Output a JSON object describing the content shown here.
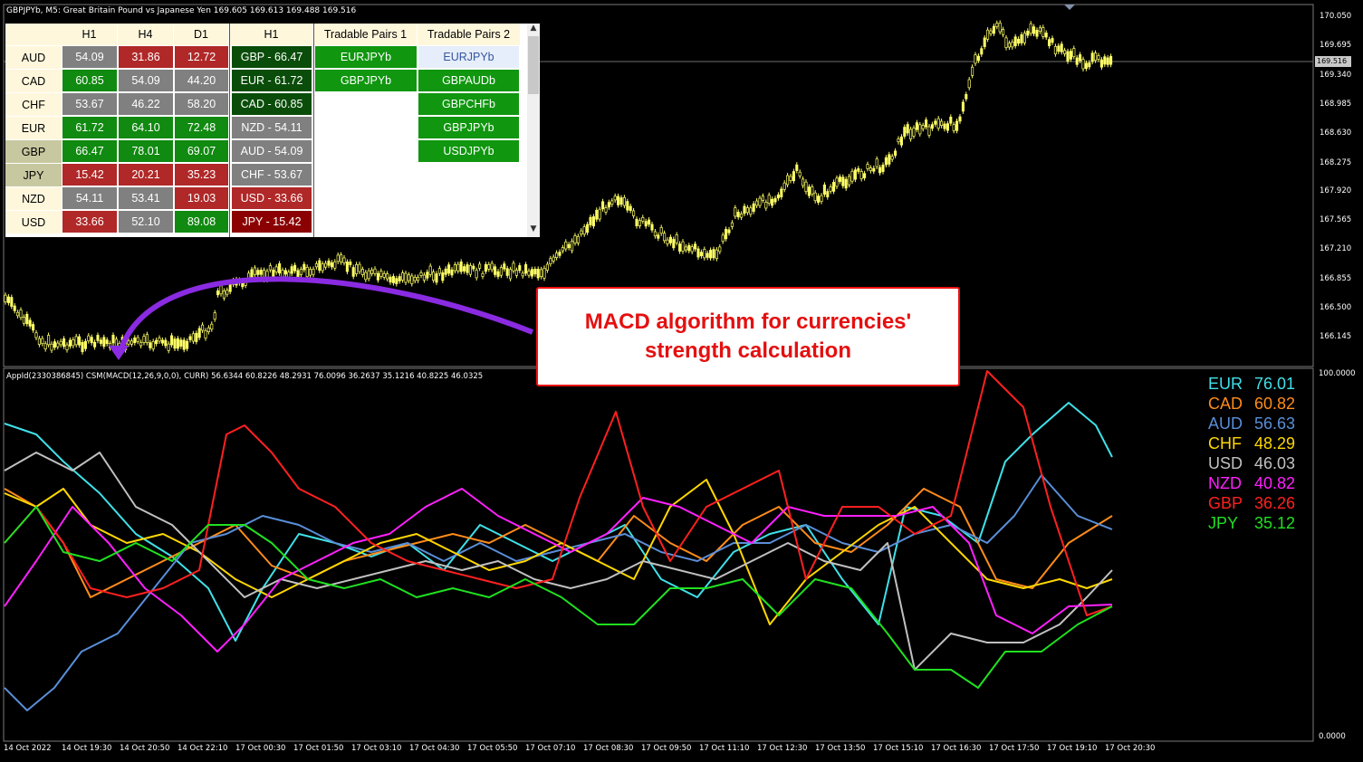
{
  "chart_header": {
    "symbol_line": "GBPJPYb, M5:  Great Britain Pound vs Japanese Yen  169.605 169.613 169.488 169.516"
  },
  "price_axis": {
    "ticks": [
      "170.050",
      "169.695",
      "169.340",
      "168.985",
      "168.630",
      "168.275",
      "167.920",
      "167.565",
      "167.210",
      "166.855",
      "166.500",
      "166.145"
    ],
    "current_price_label": "169.516"
  },
  "indicator_header": "AppId(2330386845) CSM(MACD(12,26,9,0,0), CURR) 56.6344 60.8226 48.2931 76.0096 36.2637 35.1216 40.8225 46.0325",
  "indicator_axis": {
    "top": "100.0000",
    "bottom": "0.0000"
  },
  "time_axis": [
    "14 Oct 2022",
    "14 Oct 19:30",
    "14 Oct 20:50",
    "14 Oct 22:10",
    "17 Oct 00:30",
    "17 Oct 01:50",
    "17 Oct 03:10",
    "17 Oct 04:30",
    "17 Oct 05:50",
    "17 Oct 07:10",
    "17 Oct 08:30",
    "17 Oct 09:50",
    "17 Oct 11:10",
    "17 Oct 12:30",
    "17 Oct 13:50",
    "17 Oct 15:10",
    "17 Oct 16:30",
    "17 Oct 17:50",
    "17 Oct 19:10",
    "17 Oct 20:30"
  ],
  "strength_table": {
    "headers": [
      "H1",
      "H4",
      "D1",
      "H1",
      "Tradable Pairs 1",
      "Tradable Pairs 2"
    ],
    "rows": [
      {
        "cur": "AUD",
        "h1": "54.09",
        "h4": "31.86",
        "d1": "12.72",
        "rank": "GBP - 66.47",
        "p1": "EURJPYb",
        "p2": "EURJPYb"
      },
      {
        "cur": "CAD",
        "h1": "60.85",
        "h4": "54.09",
        "d1": "44.20",
        "rank": "EUR - 61.72",
        "p1": "GBPJPYb",
        "p2": "GBPAUDb"
      },
      {
        "cur": "CHF",
        "h1": "53.67",
        "h4": "46.22",
        "d1": "58.20",
        "rank": "CAD - 60.85",
        "p1": "",
        "p2": "GBPCHFb"
      },
      {
        "cur": "EUR",
        "h1": "61.72",
        "h4": "64.10",
        "d1": "72.48",
        "rank": "NZD - 54.11",
        "p1": "",
        "p2": "GBPJPYb"
      },
      {
        "cur": "GBP",
        "h1": "66.47",
        "h4": "78.01",
        "d1": "69.07",
        "rank": "AUD - 54.09",
        "p1": "",
        "p2": "USDJPYb"
      },
      {
        "cur": "JPY",
        "h1": "15.42",
        "h4": "20.21",
        "d1": "35.23",
        "rank": "CHF - 53.67",
        "p1": "",
        "p2": ""
      },
      {
        "cur": "NZD",
        "h1": "54.11",
        "h4": "53.41",
        "d1": "19.03",
        "rank": "USD - 33.66",
        "p1": "",
        "p2": ""
      },
      {
        "cur": "USD",
        "h1": "33.66",
        "h4": "52.10",
        "d1": "89.08",
        "rank": "JPY - 15.42",
        "p1": "",
        "p2": ""
      }
    ]
  },
  "callout": {
    "text": "MACD algorithm for currencies'\nstrength calculation"
  },
  "legend": [
    {
      "cur": "EUR",
      "val": "76.01",
      "color": "#40e0e8"
    },
    {
      "cur": "CAD",
      "val": "60.82",
      "color": "#ff8c1a"
    },
    {
      "cur": "AUD",
      "val": "56.63",
      "color": "#5a8ed8"
    },
    {
      "cur": "CHF",
      "val": "48.29",
      "color": "#ffd700"
    },
    {
      "cur": "USD",
      "val": "46.03",
      "color": "#c0c0c0"
    },
    {
      "cur": "NZD",
      "val": "40.82",
      "color": "#ff20ff"
    },
    {
      "cur": "GBP",
      "val": "36.26",
      "color": "#ff2020"
    },
    {
      "cur": "JPY",
      "val": "35.12",
      "color": "#20e020"
    }
  ],
  "colors": {
    "background": "#000000",
    "candle": "#ffff66",
    "arrow": "#8a2be2"
  }
}
